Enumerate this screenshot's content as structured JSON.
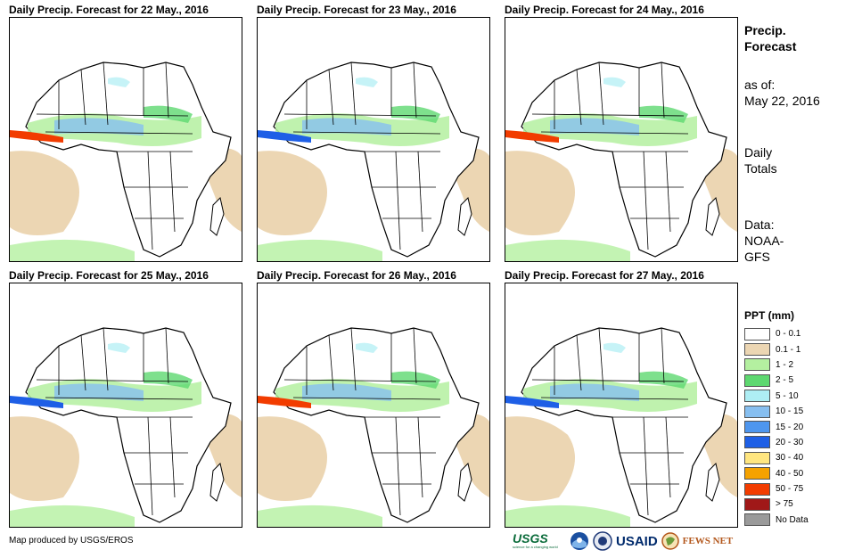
{
  "panels": [
    {
      "title": "Daily Precip. Forecast for 22 May., 2016"
    },
    {
      "title": "Daily Precip. Forecast for 23 May., 2016"
    },
    {
      "title": "Daily Precip. Forecast for 24 May., 2016"
    },
    {
      "title": "Daily Precip. Forecast for 25 May., 2016"
    },
    {
      "title": "Daily Precip. Forecast for 26 May., 2016"
    },
    {
      "title": "Daily Precip. Forecast for 27 May., 2016"
    }
  ],
  "side": {
    "heading_line1": "Precip.",
    "heading_line2": "Forecast",
    "asof_label": "as of:",
    "asof_date": "May 22, 2016",
    "totals_line1": "Daily",
    "totals_line2": "Totals",
    "data_line1": "Data:",
    "data_line2": "NOAA-",
    "data_line3": "GFS"
  },
  "legend": {
    "title": "PPT (mm)",
    "items": [
      {
        "label": "0 - 0.1",
        "color": "#ffffff"
      },
      {
        "label": "0.1 - 1",
        "color": "#ecd6b3"
      },
      {
        "label": "1 - 2",
        "color": "#b4f0a0"
      },
      {
        "label": "2 - 5",
        "color": "#5ed870"
      },
      {
        "label": "5 - 10",
        "color": "#aeeef4"
      },
      {
        "label": "10 - 15",
        "color": "#87bff0"
      },
      {
        "label": "15 - 20",
        "color": "#4e96ee"
      },
      {
        "label": "20 - 30",
        "color": "#1e5fe6"
      },
      {
        "label": "30 - 40",
        "color": "#ffe680"
      },
      {
        "label": "40 - 50",
        "color": "#f5a200"
      },
      {
        "label": "50 - 75",
        "color": "#f23c00"
      },
      {
        "label": "> 75",
        "color": "#a01818"
      },
      {
        "label": "No Data",
        "color": "#9a9a9a"
      }
    ]
  },
  "credit": "Map produced by USGS/EROS",
  "logos": {
    "usgs": "USGS",
    "usgs_tagline": "science for a changing world",
    "usaid": "USAID",
    "fewsnet": "FEWS NET"
  }
}
